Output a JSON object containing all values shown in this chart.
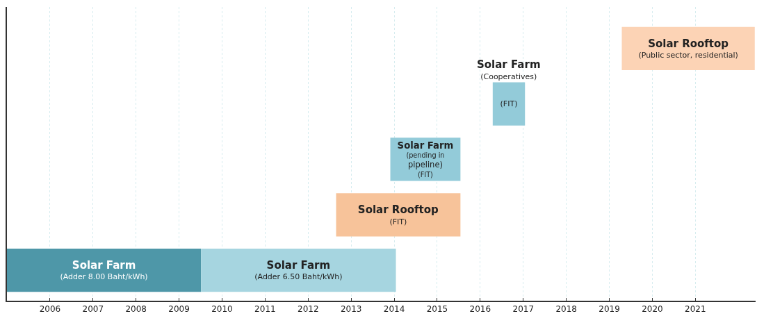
{
  "chart_data": {
    "type": "bar",
    "orientation": "horizontal",
    "categories": [
      null,
      null,
      null,
      null,
      null
    ],
    "series": [
      {
        "values": [
          3.09,
          0.75,
          1.63,
          2.89,
          4.51
        ],
        "base": [
          2019.29,
          2016.29,
          2013.91,
          2012.65,
          2005.0
        ],
        "colors": [
          "#fcd3b5",
          "#93cbd9",
          "#93cbd9",
          "#f7c39a",
          "#4e97a8"
        ],
        "value_labels": [
          "Solar Rooftop\n(Public sector, residential)",
          "(FIT)",
          "Solar Farm\n(pending in\npipeline)\n(FIT)",
          "Solar Rooftop\n(FIT)",
          "Solar Farm\n(Adder 8.00 Baht/kWh)"
        ]
      },
      {
        "values": [
          null,
          null,
          null,
          null,
          4.53
        ],
        "base": [
          null,
          null,
          null,
          null,
          2009.51
        ],
        "colors": [
          "#a6d5e0",
          "#a6d5e0",
          "#a6d5e0",
          "#a6d5e0",
          "#a6d5e0"
        ],
        "value_labels": [
          null,
          null,
          null,
          null,
          "Solar Farm\n(Adder 6.50 Baht/kWh)"
        ]
      }
    ],
    "annotations": [
      "Solar Farm\n(Cooperatives)"
    ],
    "xlim": [
      2005.0,
      2022.4
    ],
    "xticks": [
      2006,
      2007,
      2008,
      2009,
      2010,
      2011,
      2012,
      2013,
      2014,
      2015,
      2016,
      2017,
      2018,
      2019,
      2020,
      2021
    ],
    "grid": "x",
    "tick_labels": "x"
  }
}
